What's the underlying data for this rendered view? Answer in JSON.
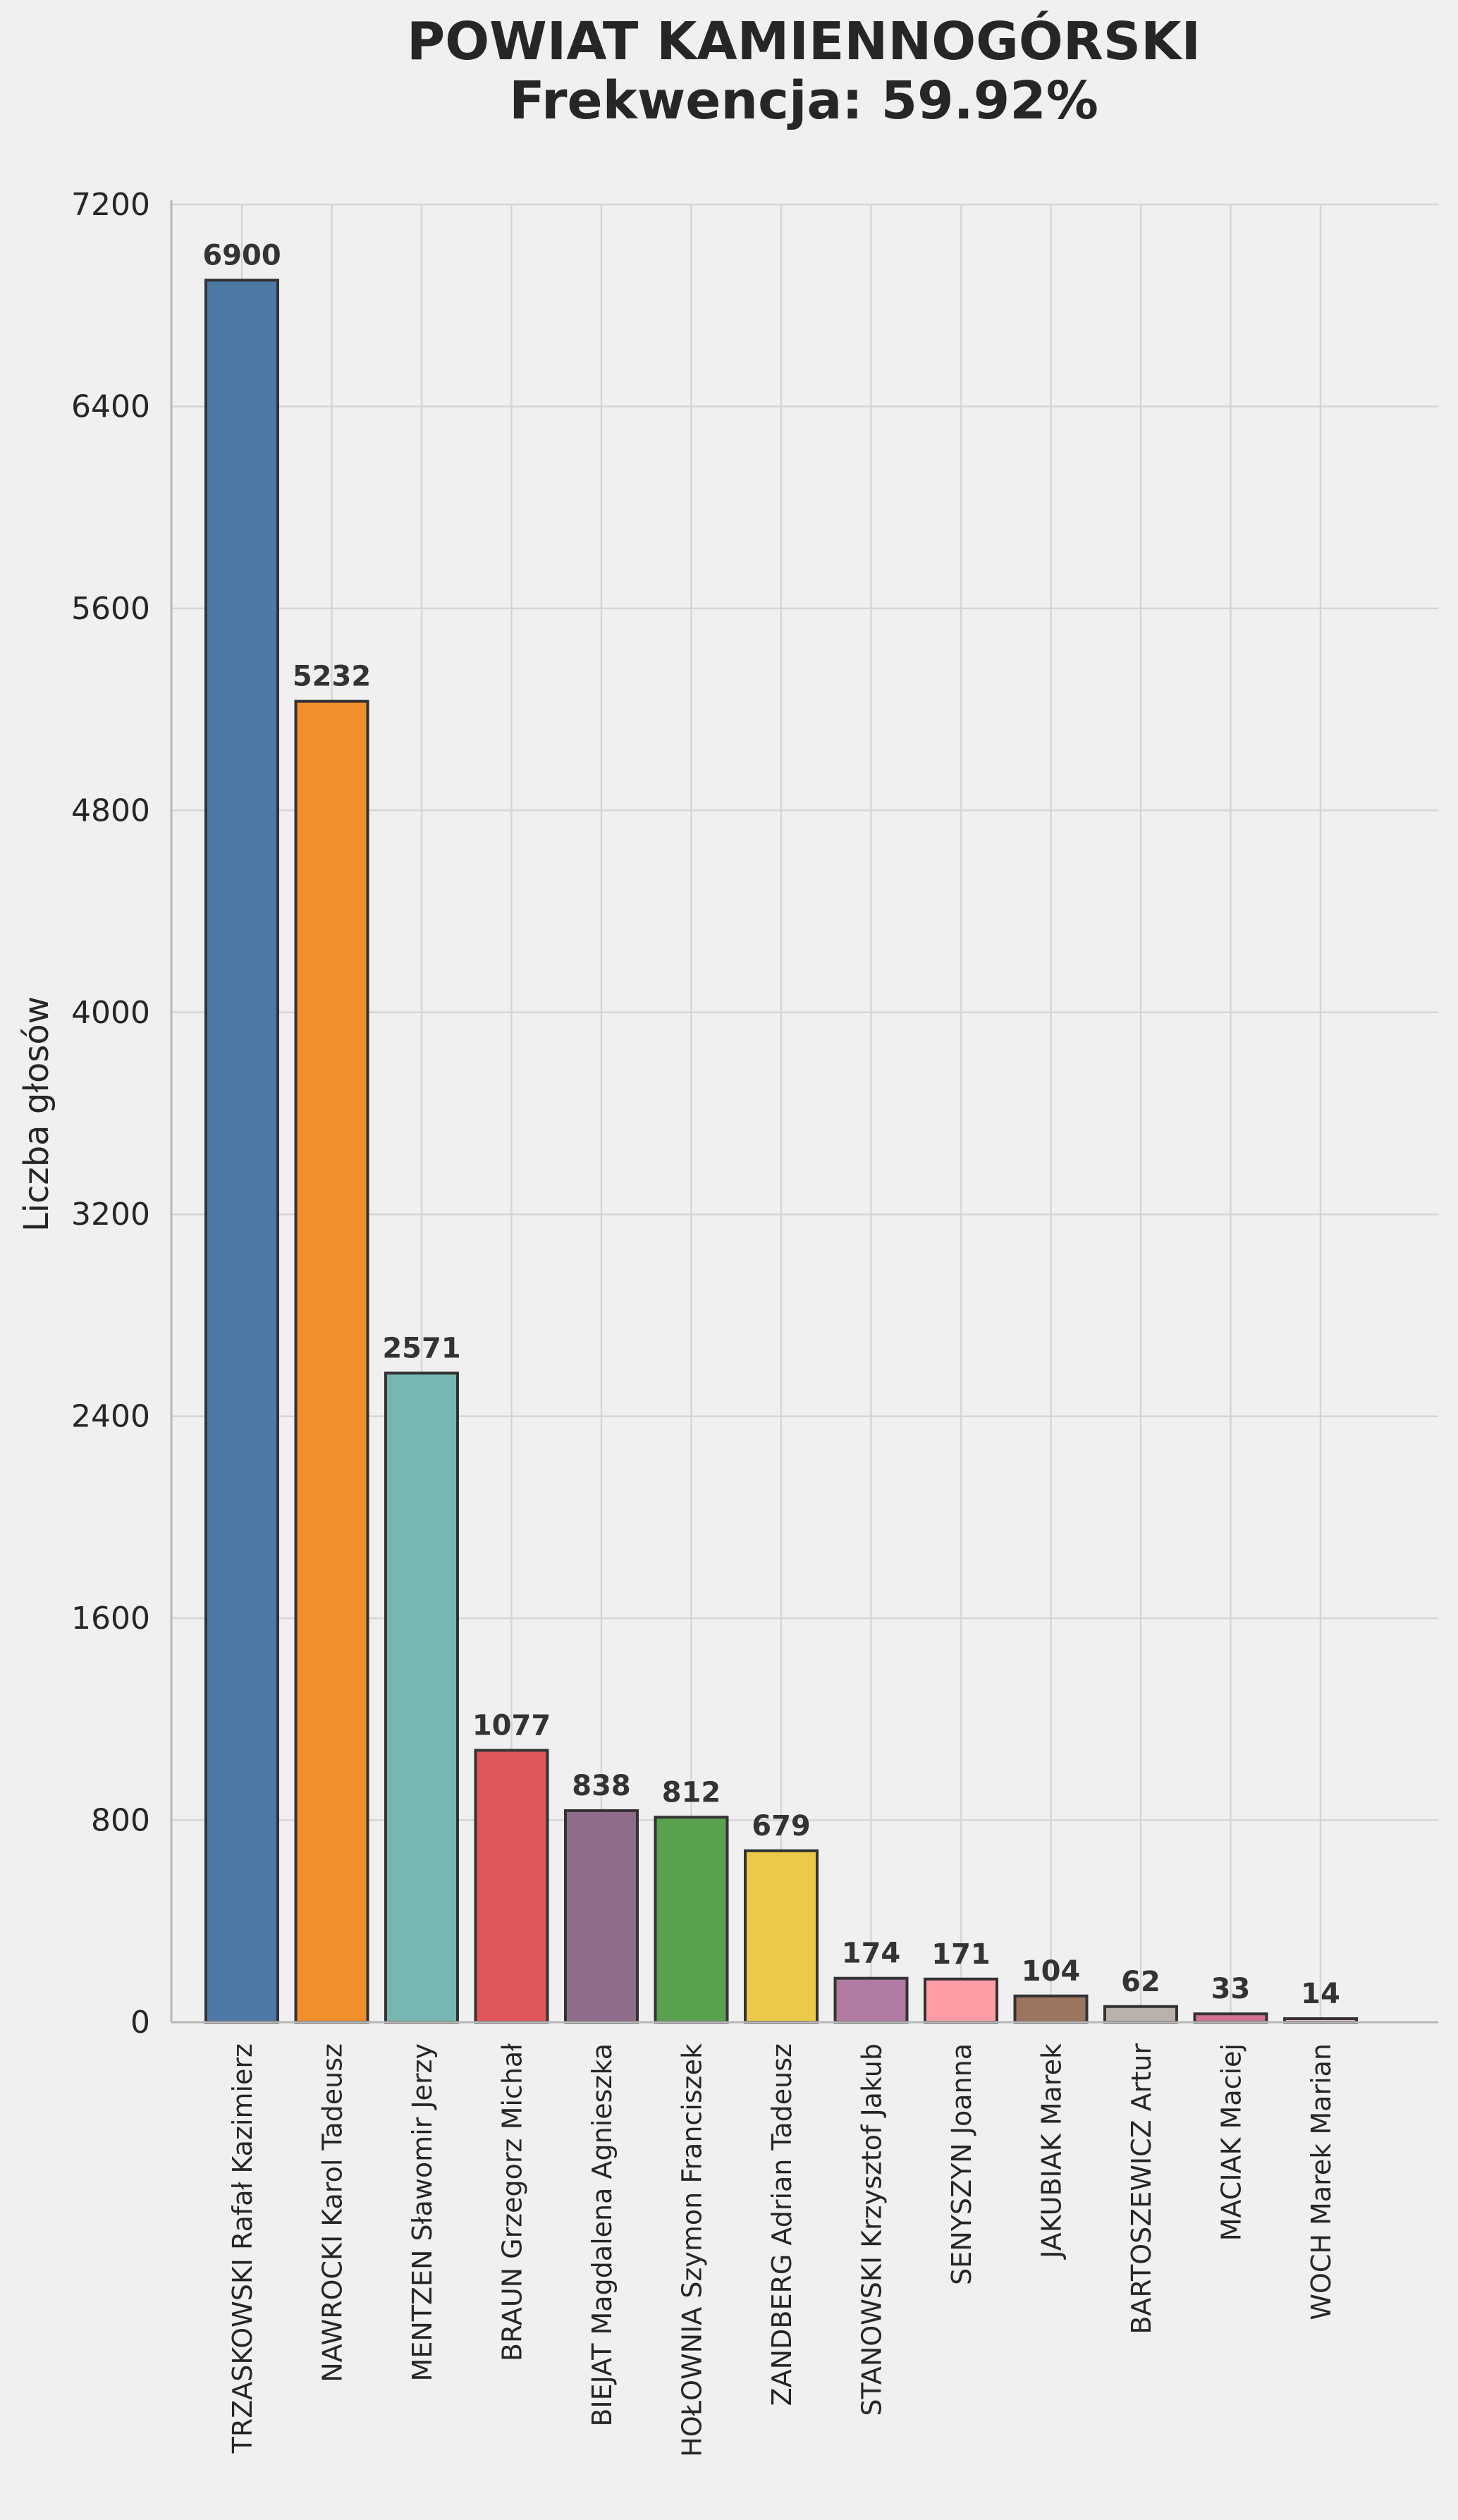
{
  "chart_data": {
    "type": "bar",
    "title": [
      "POWIAT KAMIENNOGÓRSKI",
      "Frekwencja: 59.92%"
    ],
    "xlabel": "",
    "ylabel": "Liczba głosów",
    "ylim": [
      0,
      7200
    ],
    "yticks": [
      "0",
      "800",
      "1600",
      "2400",
      "3200",
      "4000",
      "4800",
      "5600",
      "6400",
      "7200"
    ],
    "grid": true,
    "categories": [
      "TRZASKOWSKI Rafał Kazimierz",
      "NAWROCKI Karol Tadeusz",
      "MENTZEN Sławomir Jerzy",
      "BRAUN Grzegorz Michał",
      "BIEJAT Magdalena Agnieszka",
      "HOŁOWNIA Szymon Franciszek",
      "ZANDBERG Adrian Tadeusz",
      "STANOWSKI Krzysztof Jakub",
      "SENYSZYN Joanna",
      "JAKUBIAK Marek",
      "BARTOSZEWICZ Artur",
      "MACIAK Maciej",
      "WOCH Marek Marian"
    ],
    "values": [
      6900,
      5232,
      2571,
      1077,
      838,
      812,
      679,
      174,
      171,
      104,
      62,
      33,
      14
    ],
    "value_labels": [
      "6900",
      "5232",
      "2571",
      "1077",
      "838",
      "812",
      "679",
      "174",
      "171",
      "104",
      "62",
      "33",
      "14"
    ],
    "colors": [
      "#4e79a7",
      "#f28e2b",
      "#76b7b2",
      "#e15759",
      "#8e6c8a",
      "#59a14f",
      "#edc948",
      "#b07aa1",
      "#ff9da7",
      "#9c755f",
      "#bab0ac",
      "#d37295",
      "#fabfd2"
    ]
  }
}
